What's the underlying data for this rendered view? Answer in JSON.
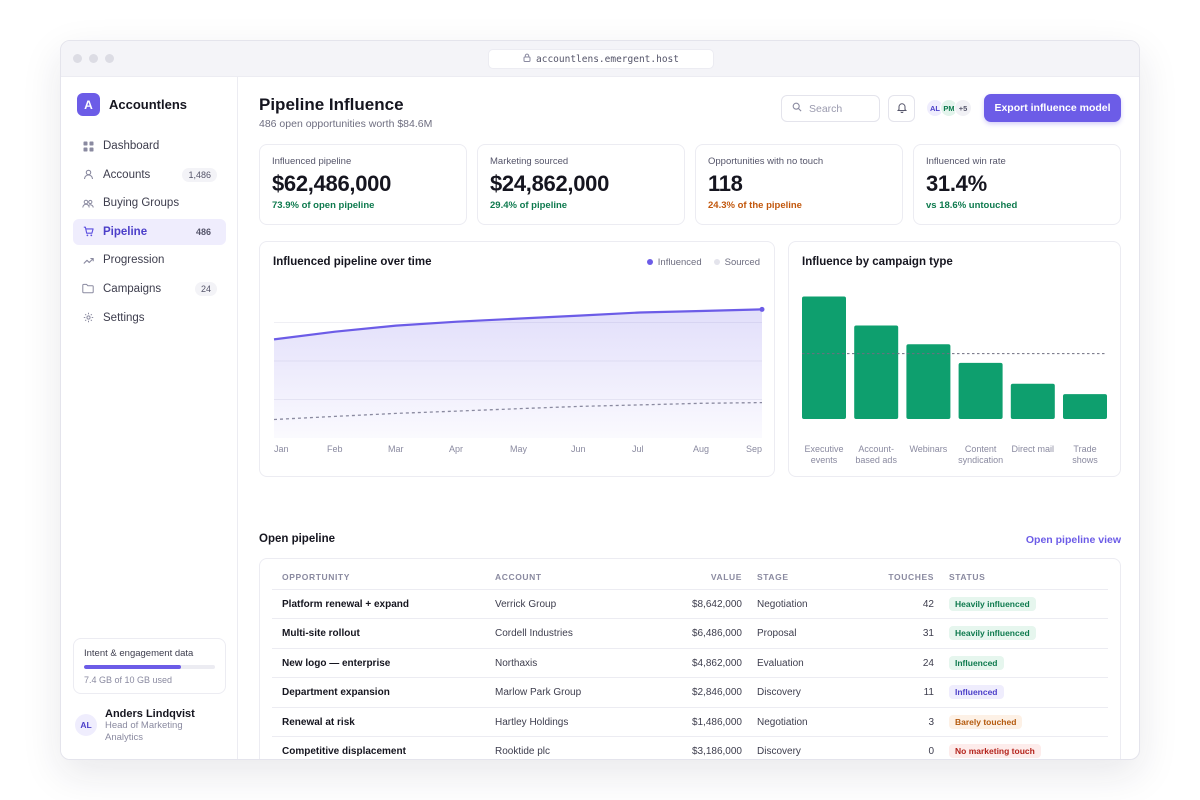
{
  "browser": {
    "url": "accountlens.emergent.host"
  },
  "brand": {
    "initial": "A",
    "name": "Accountlens"
  },
  "sidebar": {
    "items": [
      {
        "label": "Dashboard",
        "icon": "grid-icon",
        "count": ""
      },
      {
        "label": "Accounts",
        "icon": "user-icon",
        "count": "1,486"
      },
      {
        "label": "Buying Groups",
        "icon": "users-icon",
        "count": ""
      },
      {
        "label": "Pipeline",
        "icon": "cart-icon",
        "count": "486",
        "active": true
      },
      {
        "label": "Progression",
        "icon": "trend-icon",
        "count": ""
      },
      {
        "label": "Campaigns",
        "icon": "folder-icon",
        "count": "24"
      },
      {
        "label": "Settings",
        "icon": "gear-icon",
        "count": ""
      }
    ],
    "storage": {
      "title": "Intent & engagement data",
      "used_fraction": 0.74,
      "sub": "7.4 GB of 10 GB used"
    },
    "user": {
      "initials": "AL",
      "name": "Anders Lindqvist",
      "role": "Head of Marketing Analytics"
    }
  },
  "header": {
    "title": "Pipeline Influence",
    "subtitle": "486 open opportunities worth $84.6M",
    "search_placeholder": "Search",
    "avatars": [
      "AL",
      "PM",
      "+5"
    ],
    "export_label": "Export influence model"
  },
  "kpis": [
    {
      "label": "Influenced pipeline",
      "value": "$62,486,000",
      "sub": "73.9% of open pipeline",
      "sub_color": "#0e7a4e"
    },
    {
      "label": "Marketing sourced",
      "value": "$24,862,000",
      "sub": "29.4% of pipeline",
      "sub_color": "#0e7a4e"
    },
    {
      "label": "Opportunities with no touch",
      "value": "118",
      "sub": "24.3% of the pipeline",
      "sub_color": "#c2570c"
    },
    {
      "label": "Influenced win rate",
      "value": "31.4%",
      "sub": "vs 18.6% untouched",
      "sub_color": "#0e7a4e"
    }
  ],
  "charts": {
    "line_title": "Influenced pipeline over time",
    "line_legend": [
      "Influenced",
      "Sourced"
    ],
    "bar_title": "Influence by campaign type"
  },
  "chart_data": [
    {
      "type": "area",
      "title": "Influenced pipeline over time",
      "x": [
        "Jan",
        "Feb",
        "Mar",
        "Apr",
        "May",
        "Jun",
        "Jul",
        "Aug",
        "Sep"
      ],
      "series": [
        {
          "name": "Influenced",
          "values": [
            0.64,
            0.69,
            0.73,
            0.755,
            0.775,
            0.795,
            0.815,
            0.825,
            0.835
          ],
          "color": "#6c5ce7"
        },
        {
          "name": "Sourced",
          "values": [
            0.12,
            0.14,
            0.16,
            0.175,
            0.19,
            0.205,
            0.215,
            0.225,
            0.23
          ],
          "color": "#8a8aa0"
        }
      ],
      "ylim": [
        0,
        1
      ],
      "grid": true,
      "legend": "top-right"
    },
    {
      "type": "bar",
      "title": "Influence by campaign type",
      "categories": [
        "Executive events",
        "Account-based ads",
        "Webinars",
        "Content syndication",
        "Direct mail",
        "Trade shows"
      ],
      "values": [
        118,
        90,
        72,
        54,
        34,
        24
      ],
      "reference_line": 63,
      "ylim": [
        0,
        130
      ],
      "color": "#0e9f6e"
    }
  ],
  "table": {
    "title": "Open pipeline",
    "link": "Open pipeline view",
    "headers": [
      "OPPORTUNITY",
      "ACCOUNT",
      "VALUE",
      "STAGE",
      "TOUCHES",
      "STATUS"
    ],
    "rows": [
      {
        "opportunity": "Platform renewal + expand",
        "account": "Verrick Group",
        "value": "$8,642,000",
        "stage": "Negotiation",
        "touches": "42",
        "status": "Heavily influenced",
        "tone": "green"
      },
      {
        "opportunity": "Multi-site rollout",
        "account": "Cordell Industries",
        "value": "$6,486,000",
        "stage": "Proposal",
        "touches": "31",
        "status": "Heavily influenced",
        "tone": "green"
      },
      {
        "opportunity": "New logo — enterprise",
        "account": "Northaxis",
        "value": "$4,862,000",
        "stage": "Evaluation",
        "touches": "24",
        "status": "Influenced",
        "tone": "green"
      },
      {
        "opportunity": "Department expansion",
        "account": "Marlow Park Group",
        "value": "$2,846,000",
        "stage": "Discovery",
        "touches": "11",
        "status": "Influenced",
        "tone": "purple"
      },
      {
        "opportunity": "Renewal at risk",
        "account": "Hartley Holdings",
        "value": "$1,486,000",
        "stage": "Negotiation",
        "touches": "3",
        "status": "Barely touched",
        "tone": "orange"
      },
      {
        "opportunity": "Competitive displacement",
        "account": "Rooktide plc",
        "value": "$3,186,000",
        "stage": "Discovery",
        "touches": "0",
        "status": "No marketing touch",
        "tone": "red"
      }
    ]
  }
}
